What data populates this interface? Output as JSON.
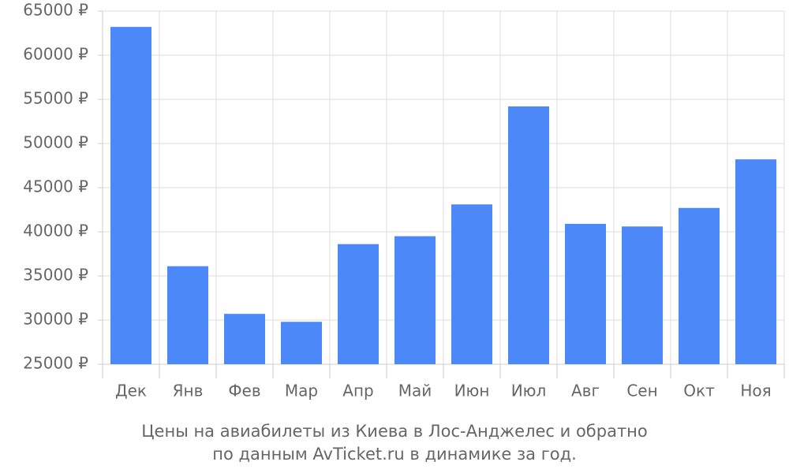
{
  "chart_data": {
    "type": "bar",
    "title_lines": [
      "Цены на авиабилеты из Киева в Лос-Анджелес и обратно",
      "по данным AvTicket.ru в динамике за год."
    ],
    "categories": [
      "Дек",
      "Янв",
      "Фев",
      "Мар",
      "Апр",
      "Май",
      "Июн",
      "Июл",
      "Авг",
      "Сен",
      "Окт",
      "Ноя"
    ],
    "values": [
      63200,
      36100,
      30700,
      29800,
      38600,
      39500,
      43100,
      54200,
      40900,
      40600,
      42700,
      48200
    ],
    "color": "#4d88f8",
    "ylim": [
      25000,
      65000
    ],
    "yticks": [
      {
        "value": 25000,
        "label": "25000 ₽"
      },
      {
        "value": 30000,
        "label": "30000 ₽"
      },
      {
        "value": 35000,
        "label": "35000 ₽"
      },
      {
        "value": 40000,
        "label": "40000 ₽"
      },
      {
        "value": 45000,
        "label": "45000 ₽"
      },
      {
        "value": 50000,
        "label": "50000 ₽"
      },
      {
        "value": 55000,
        "label": "55000 ₽"
      },
      {
        "value": 60000,
        "label": "60000 ₽"
      },
      {
        "value": 65000,
        "label": "65000 ₽"
      }
    ],
    "grid": true
  }
}
